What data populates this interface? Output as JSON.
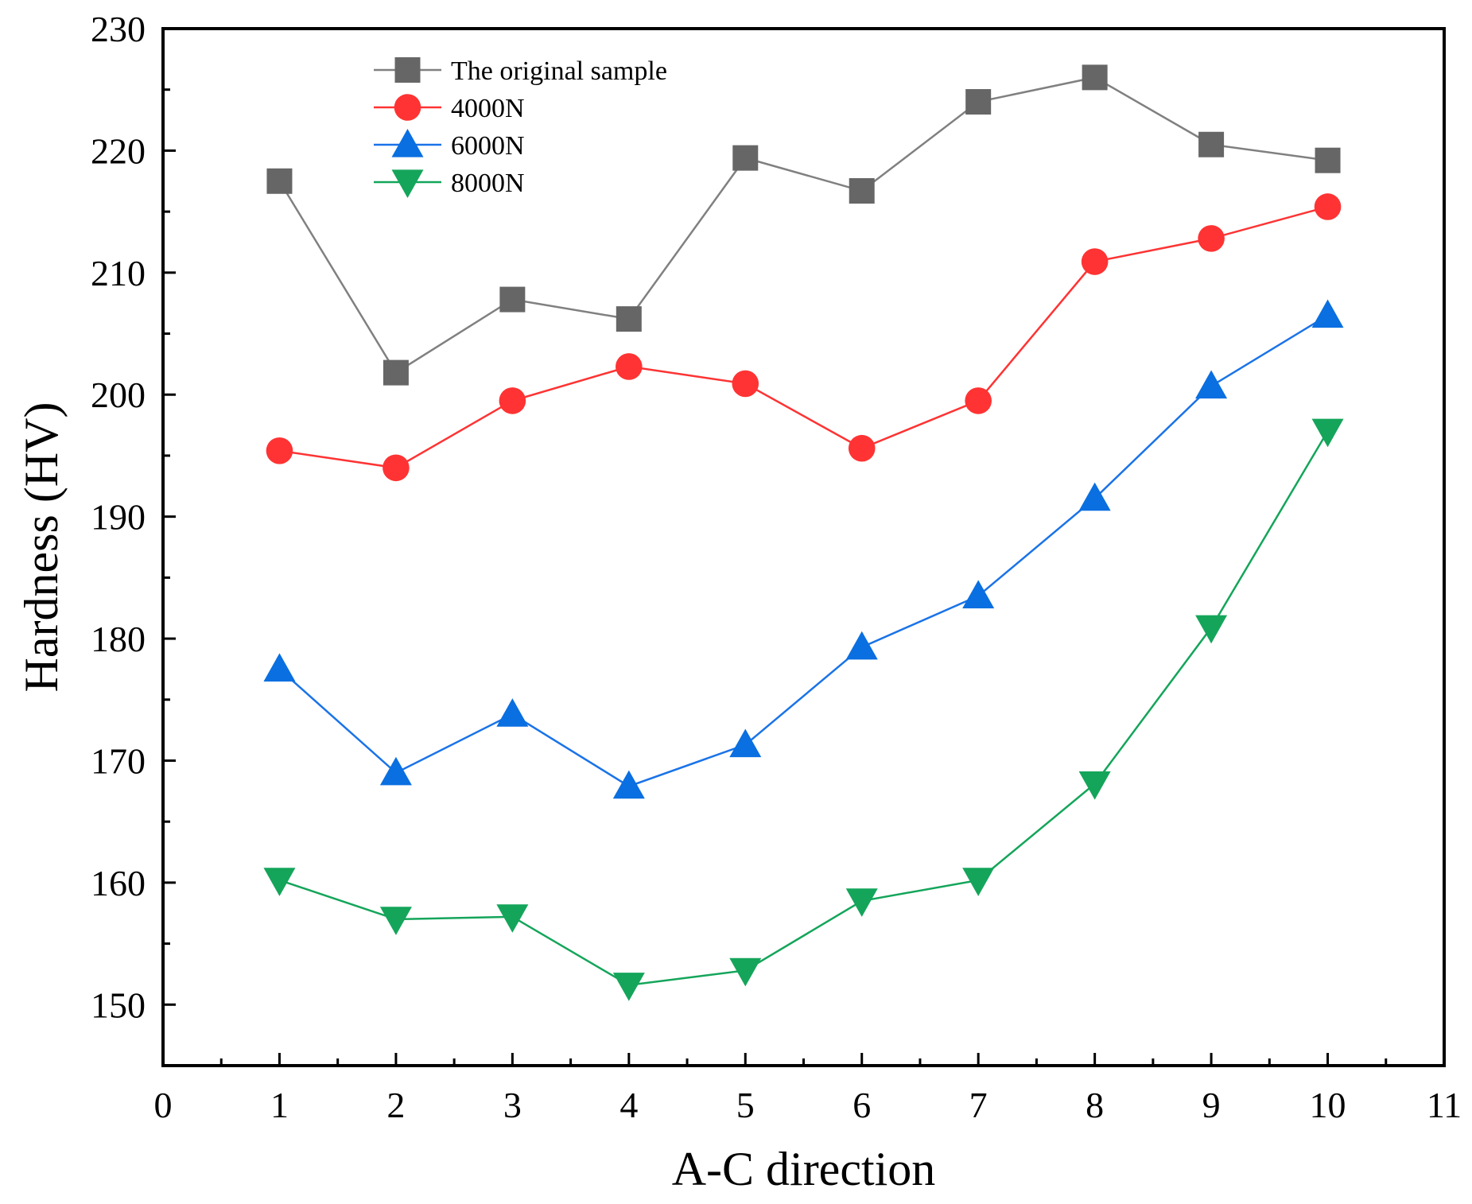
{
  "chart_data": {
    "type": "line",
    "title": "",
    "xlabel": "A-C direction",
    "ylabel": "Hardness (HV)",
    "xlim": [
      0,
      11
    ],
    "ylim": [
      145,
      230
    ],
    "xticks": [
      0,
      1,
      2,
      3,
      4,
      5,
      6,
      7,
      8,
      9,
      10,
      11
    ],
    "yticks": [
      150,
      160,
      170,
      180,
      190,
      200,
      210,
      220,
      230
    ],
    "x_tick_labels": [
      "0",
      "1",
      "2",
      "3",
      "4",
      "5",
      "6",
      "7",
      "8",
      "9",
      "10",
      "11"
    ],
    "y_tick_labels": [
      "150",
      "160",
      "170",
      "180",
      "190",
      "200",
      "210",
      "220",
      "230"
    ],
    "grid": false,
    "legend_position": "top-left",
    "x": [
      1,
      2,
      3,
      4,
      5,
      6,
      7,
      8,
      9,
      10
    ],
    "series": [
      {
        "name": "The original sample",
        "marker": "square",
        "color": "#666666",
        "line_color": "#808080",
        "values": [
          217.5,
          201.8,
          207.8,
          206.2,
          219.4,
          216.7,
          224.0,
          226.0,
          220.5,
          219.2
        ]
      },
      {
        "name": "4000N",
        "marker": "circle",
        "color": "#ff3333",
        "line_color": "#ff3333",
        "values": [
          195.4,
          194.0,
          199.5,
          202.3,
          200.9,
          195.6,
          199.5,
          210.9,
          212.8,
          215.4
        ]
      },
      {
        "name": "6000N",
        "marker": "triangle-up",
        "color": "#0a6fe0",
        "line_color": "#1a73e8",
        "values": [
          177.5,
          169.0,
          173.8,
          167.9,
          171.3,
          179.3,
          183.5,
          191.5,
          200.7,
          206.5
        ]
      },
      {
        "name": "8000N",
        "marker": "triangle-down",
        "color": "#14a55a",
        "line_color": "#14a55a",
        "values": [
          160.2,
          157.0,
          157.2,
          151.6,
          152.8,
          158.5,
          160.2,
          168.1,
          180.9,
          197.0
        ]
      }
    ]
  }
}
